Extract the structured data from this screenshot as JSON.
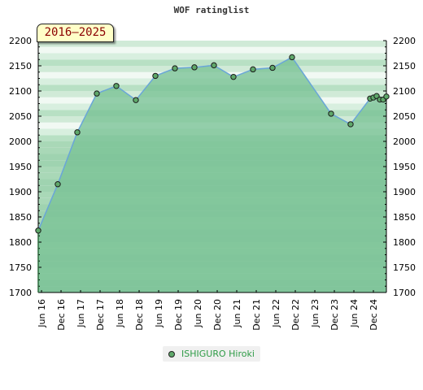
{
  "chart_data": {
    "type": "line",
    "title": "WOF ratinglist",
    "badge": "2016–2025",
    "ylim": [
      1700,
      2200
    ],
    "yticks": [
      1700,
      1750,
      1800,
      1850,
      1900,
      1950,
      2000,
      2050,
      2100,
      2150,
      2200
    ],
    "xlim": [
      2016.333,
      2025.25
    ],
    "xticks": [
      {
        "label": "Jun 16",
        "x": 2016.417
      },
      {
        "label": "Dec 16",
        "x": 2016.917
      },
      {
        "label": "Jun 17",
        "x": 2017.417
      },
      {
        "label": "Dec 17",
        "x": 2017.917
      },
      {
        "label": "Jun 18",
        "x": 2018.417
      },
      {
        "label": "Dec 18",
        "x": 2018.917
      },
      {
        "label": "Jun 19",
        "x": 2019.417
      },
      {
        "label": "Dec 19",
        "x": 2019.917
      },
      {
        "label": "Jun 20",
        "x": 2020.417
      },
      {
        "label": "Dec 20",
        "x": 2020.917
      },
      {
        "label": "Jun 21",
        "x": 2021.417
      },
      {
        "label": "Dec 21",
        "x": 2021.917
      },
      {
        "label": "Jun 22",
        "x": 2022.417
      },
      {
        "label": "Dec 22",
        "x": 2022.917
      },
      {
        "label": "Jun 23",
        "x": 2023.417
      },
      {
        "label": "Dec 23",
        "x": 2023.917
      },
      {
        "label": "Jun 24",
        "x": 2024.417
      },
      {
        "label": "Dec 24",
        "x": 2024.917
      }
    ],
    "grid": true,
    "legend_position": "bottom",
    "colors": {
      "line": "#6aa6d8",
      "marker": "#5fa86a",
      "band_dark": "#79c295",
      "band_light": "#9fd3b0",
      "legend_text": "#2e9b46"
    },
    "series": [
      {
        "name": "ISHIGURO Hiroki",
        "points": [
          {
            "x": 2016.333,
            "y": 1823
          },
          {
            "x": 2016.833,
            "y": 1915
          },
          {
            "x": 2017.333,
            "y": 2018
          },
          {
            "x": 2017.833,
            "y": 2095
          },
          {
            "x": 2018.333,
            "y": 2110
          },
          {
            "x": 2018.833,
            "y": 2082
          },
          {
            "x": 2019.333,
            "y": 2130
          },
          {
            "x": 2019.833,
            "y": 2145
          },
          {
            "x": 2020.333,
            "y": 2147
          },
          {
            "x": 2020.833,
            "y": 2151
          },
          {
            "x": 2021.333,
            "y": 2128
          },
          {
            "x": 2021.833,
            "y": 2143
          },
          {
            "x": 2022.333,
            "y": 2146
          },
          {
            "x": 2022.833,
            "y": 2167
          },
          {
            "x": 2023.833,
            "y": 2055
          },
          {
            "x": 2024.333,
            "y": 2034
          },
          {
            "x": 2024.833,
            "y": 2085
          },
          {
            "x": 2024.917,
            "y": 2087
          },
          {
            "x": 2025.0,
            "y": 2090
          },
          {
            "x": 2025.083,
            "y": 2083
          },
          {
            "x": 2025.167,
            "y": 2083
          },
          {
            "x": 2025.25,
            "y": 2089
          }
        ]
      }
    ]
  }
}
